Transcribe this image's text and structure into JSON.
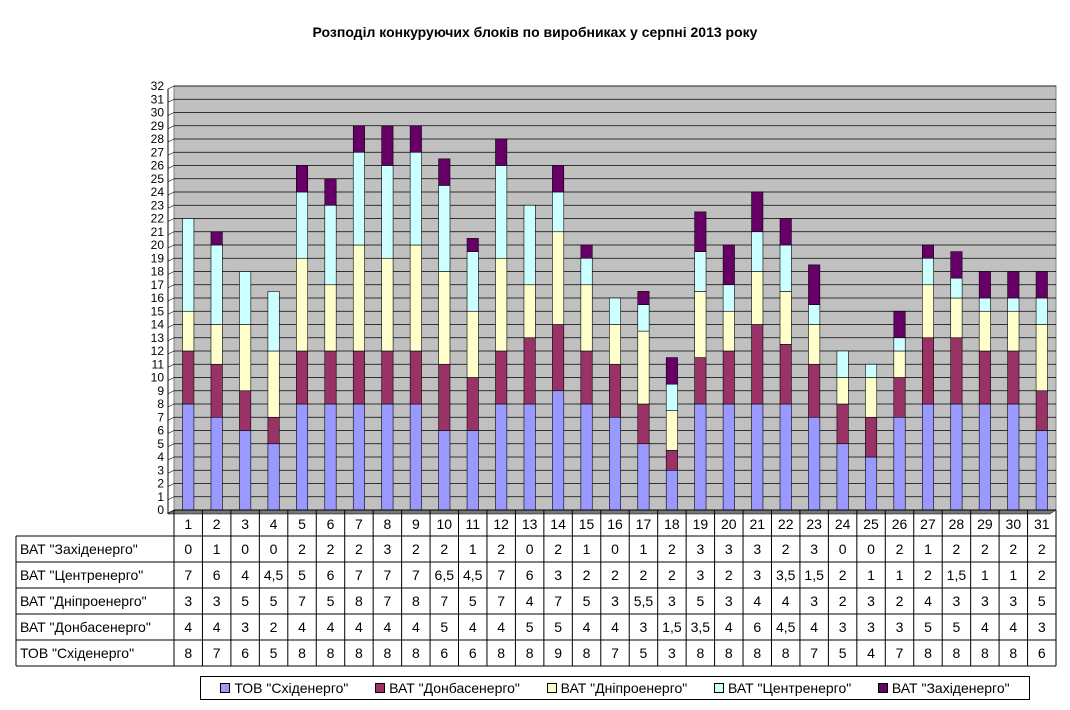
{
  "chart_data": {
    "type": "bar",
    "stacked": true,
    "title": "Розподіл конкуруючих блоків по виробниках у серпні 2013 року",
    "xlabel": "",
    "ylabel": "",
    "ylim": [
      0,
      32
    ],
    "yticks": [
      "0",
      "1",
      "2",
      "3",
      "4",
      "5",
      "6",
      "7",
      "8",
      "9",
      "10",
      "11",
      "12",
      "13",
      "14",
      "15",
      "16",
      "17",
      "18",
      "19",
      "20",
      "21",
      "22",
      "23",
      "24",
      "25",
      "26",
      "27",
      "28",
      "29",
      "30",
      "31",
      "32"
    ],
    "categories": [
      "1",
      "2",
      "3",
      "4",
      "5",
      "6",
      "7",
      "8",
      "9",
      "10",
      "11",
      "12",
      "13",
      "14",
      "15",
      "16",
      "17",
      "18",
      "19",
      "20",
      "21",
      "22",
      "23",
      "24",
      "25",
      "26",
      "27",
      "28",
      "29",
      "30",
      "31"
    ],
    "grid": true,
    "legend_position": "bottom",
    "series": [
      {
        "name": "ТОВ \"Сxiденерго\"",
        "color": "#9999ff",
        "values": [
          8,
          7,
          6,
          5,
          8,
          8,
          8,
          8,
          8,
          6,
          6,
          8,
          8,
          9,
          8,
          7,
          5,
          3,
          8,
          8,
          8,
          8,
          7,
          5,
          4,
          7,
          8,
          8,
          8,
          8,
          6
        ],
        "labels": [
          "8",
          "7",
          "6",
          "5",
          "8",
          "8",
          "8",
          "8",
          "8",
          "6",
          "6",
          "8",
          "8",
          "9",
          "8",
          "7",
          "5",
          "3",
          "8",
          "8",
          "8",
          "8",
          "7",
          "5",
          "4",
          "7",
          "8",
          "8",
          "8",
          "8",
          "6"
        ]
      },
      {
        "name": "ВАТ \"Донбасенерго\"",
        "color": "#993366",
        "values": [
          4,
          4,
          3,
          2,
          4,
          4,
          4,
          4,
          4,
          5,
          4,
          4,
          5,
          5,
          4,
          4,
          3,
          1.5,
          3.5,
          4,
          6,
          4.5,
          4,
          3,
          3,
          3,
          5,
          5,
          4,
          4,
          3
        ],
        "labels": [
          "4",
          "4",
          "3",
          "2",
          "4",
          "4",
          "4",
          "4",
          "4",
          "5",
          "4",
          "4",
          "5",
          "5",
          "4",
          "4",
          "3",
          "1,5",
          "3,5",
          "4",
          "6",
          "4,5",
          "4",
          "3",
          "3",
          "3",
          "5",
          "5",
          "4",
          "4",
          "3"
        ]
      },
      {
        "name": "ВАТ \"Дніпроенерго\"",
        "color": "#ffffcc",
        "values": [
          3,
          3,
          5,
          5,
          7,
          5,
          8,
          7,
          8,
          7,
          5,
          7,
          4,
          7,
          5,
          3,
          5.5,
          3,
          5,
          3,
          4,
          4,
          3,
          2,
          3,
          2,
          4,
          3,
          3,
          3,
          5
        ],
        "labels": [
          "3",
          "3",
          "5",
          "5",
          "7",
          "5",
          "8",
          "7",
          "8",
          "7",
          "5",
          "7",
          "4",
          "7",
          "5",
          "3",
          "5,5",
          "3",
          "5",
          "3",
          "4",
          "4",
          "3",
          "2",
          "3",
          "2",
          "4",
          "3",
          "3",
          "3",
          "5"
        ]
      },
      {
        "name": "ВАТ \"Центренерго\"",
        "color": "#ccffff",
        "values": [
          7,
          6,
          4,
          4.5,
          5,
          6,
          7,
          7,
          7,
          6.5,
          4.5,
          7,
          6,
          3,
          2,
          2,
          2,
          2,
          3,
          2,
          3,
          3.5,
          1.5,
          2,
          1,
          1,
          2,
          1.5,
          1,
          1,
          2
        ],
        "labels": [
          "7",
          "6",
          "4",
          "4,5",
          "5",
          "6",
          "7",
          "7",
          "7",
          "6,5",
          "4,5",
          "7",
          "6",
          "3",
          "2",
          "2",
          "2",
          "2",
          "3",
          "2",
          "3",
          "3,5",
          "1,5",
          "2",
          "1",
          "1",
          "2",
          "1,5",
          "1",
          "1",
          "2"
        ]
      },
      {
        "name": "ВАТ \"Західенерго\"",
        "color": "#660066",
        "values": [
          0,
          1,
          0,
          0,
          2,
          2,
          2,
          3,
          2,
          2,
          1,
          2,
          0,
          2,
          1,
          0,
          1,
          2,
          3,
          3,
          3,
          2,
          3,
          0,
          0,
          2,
          1,
          2,
          2,
          2,
          2
        ],
        "labels": [
          "0",
          "1",
          "0",
          "0",
          "2",
          "2",
          "2",
          "3",
          "2",
          "2",
          "1",
          "2",
          "0",
          "2",
          "1",
          "0",
          "1",
          "2",
          "3",
          "3",
          "3",
          "2",
          "3",
          "0",
          "0",
          "2",
          "1",
          "2",
          "2",
          "2",
          "2"
        ]
      }
    ],
    "table_rows": [
      {
        "label": "ВАТ \"Західенерго\"",
        "series_index": 4
      },
      {
        "label": "ВАТ \"Центренерго\"",
        "series_index": 3
      },
      {
        "label": "ВАТ \"Дніпроенерго\"",
        "series_index": 2
      },
      {
        "label": "ВАТ \"Донбасенерго\"",
        "series_index": 1
      },
      {
        "label": "ТОВ \"Сxiденерго\"",
        "series_index": 0
      }
    ],
    "legend_order": [
      0,
      1,
      2,
      3,
      4
    ]
  }
}
